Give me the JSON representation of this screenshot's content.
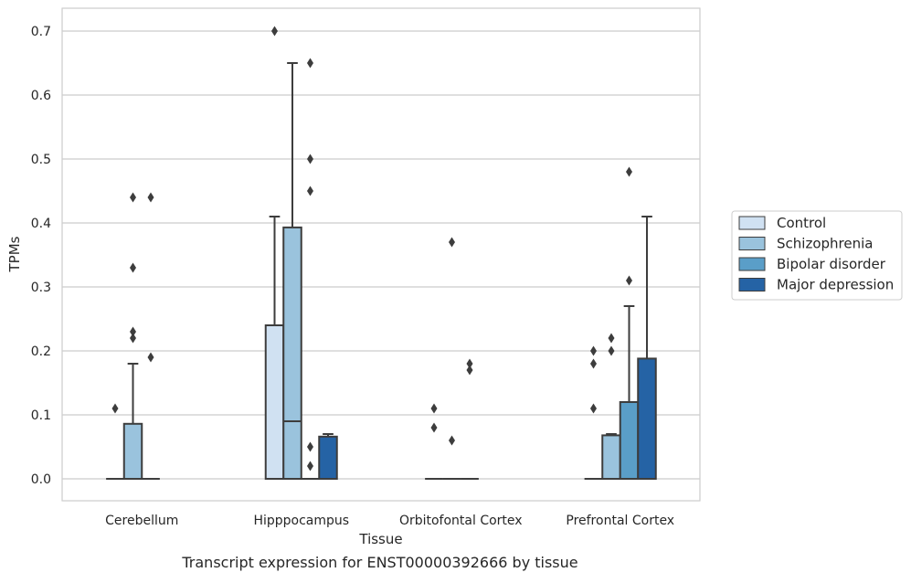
{
  "caption": "Transcript expression for ENST00000392666 by tissue",
  "chart_data": {
    "type": "box",
    "xlabel": "Tissue",
    "ylabel": "TPMs",
    "ylim": [
      -0.035,
      0.735
    ],
    "yticks": [
      "0.0",
      "0.1",
      "0.2",
      "0.3",
      "0.4",
      "0.5",
      "0.6",
      "0.7"
    ],
    "ytick_values": [
      0.0,
      0.1,
      0.2,
      0.3,
      0.4,
      0.5,
      0.6,
      0.7
    ],
    "grid": "horizontal",
    "legend_position": "right",
    "categories": [
      "Cerebellum",
      "Hipppocampus",
      "Orbitofontal Cortex",
      "Prefrontal Cortex"
    ],
    "series": [
      {
        "name": "Control",
        "color": "#d0e1f2",
        "boxes": [
          {
            "q1": 0.0,
            "median": 0.0,
            "q3": 0.0,
            "whisker_low": 0.0,
            "whisker_high": 0.0,
            "outliers": [
              0.11
            ]
          },
          {
            "q1": 0.0,
            "median": 0.0,
            "q3": 0.24,
            "whisker_low": 0.0,
            "whisker_high": 0.41,
            "outliers": [
              0.7
            ]
          },
          {
            "q1": 0.0,
            "median": 0.0,
            "q3": 0.0,
            "whisker_low": 0.0,
            "whisker_high": 0.0,
            "outliers": [
              0.11,
              0.08
            ]
          },
          {
            "q1": 0.0,
            "median": 0.0,
            "q3": 0.0,
            "whisker_low": 0.0,
            "whisker_high": 0.0,
            "outliers": [
              0.2,
              0.18,
              0.11
            ]
          }
        ]
      },
      {
        "name": "Schizophrenia",
        "color": "#9ac3dd",
        "boxes": [
          {
            "q1": 0.0,
            "median": 0.0,
            "q3": 0.086,
            "whisker_low": 0.0,
            "whisker_high": 0.18,
            "outliers": [
              0.44,
              0.33,
              0.23,
              0.22
            ]
          },
          {
            "q1": 0.0,
            "median": 0.09,
            "q3": 0.393,
            "whisker_low": 0.0,
            "whisker_high": 0.65,
            "outliers": []
          },
          {
            "q1": 0.0,
            "median": 0.0,
            "q3": 0.0,
            "whisker_low": 0.0,
            "whisker_high": 0.0,
            "outliers": [
              0.37,
              0.06
            ]
          },
          {
            "q1": 0.0,
            "median": 0.0,
            "q3": 0.068,
            "whisker_low": 0.0,
            "whisker_high": 0.07,
            "outliers": [
              0.22,
              0.2
            ]
          }
        ]
      },
      {
        "name": "Bipolar disorder",
        "color": "#5a9ec8",
        "boxes": [
          {
            "q1": 0.0,
            "median": 0.0,
            "q3": 0.0,
            "whisker_low": 0.0,
            "whisker_high": 0.0,
            "outliers": [
              0.44,
              0.19
            ]
          },
          {
            "q1": 0.0,
            "median": 0.0,
            "q3": 0.0,
            "whisker_low": 0.0,
            "whisker_high": 0.0,
            "outliers": [
              0.65,
              0.5,
              0.45,
              0.05,
              0.02
            ]
          },
          {
            "q1": 0.0,
            "median": 0.0,
            "q3": 0.0,
            "whisker_low": 0.0,
            "whisker_high": 0.0,
            "outliers": [
              0.18,
              0.17
            ]
          },
          {
            "q1": 0.0,
            "median": 0.0,
            "q3": 0.12,
            "whisker_low": 0.0,
            "whisker_high": 0.27,
            "outliers": [
              0.48,
              0.31
            ]
          }
        ]
      },
      {
        "name": "Major depression",
        "color": "#2563a5",
        "boxes": [
          null,
          {
            "q1": 0.0,
            "median": 0.0,
            "q3": 0.066,
            "whisker_low": 0.0,
            "whisker_high": 0.07,
            "outliers": []
          },
          null,
          {
            "q1": 0.0,
            "median": 0.0,
            "q3": 0.188,
            "whisker_low": 0.0,
            "whisker_high": 0.41,
            "outliers": []
          }
        ]
      }
    ]
  }
}
